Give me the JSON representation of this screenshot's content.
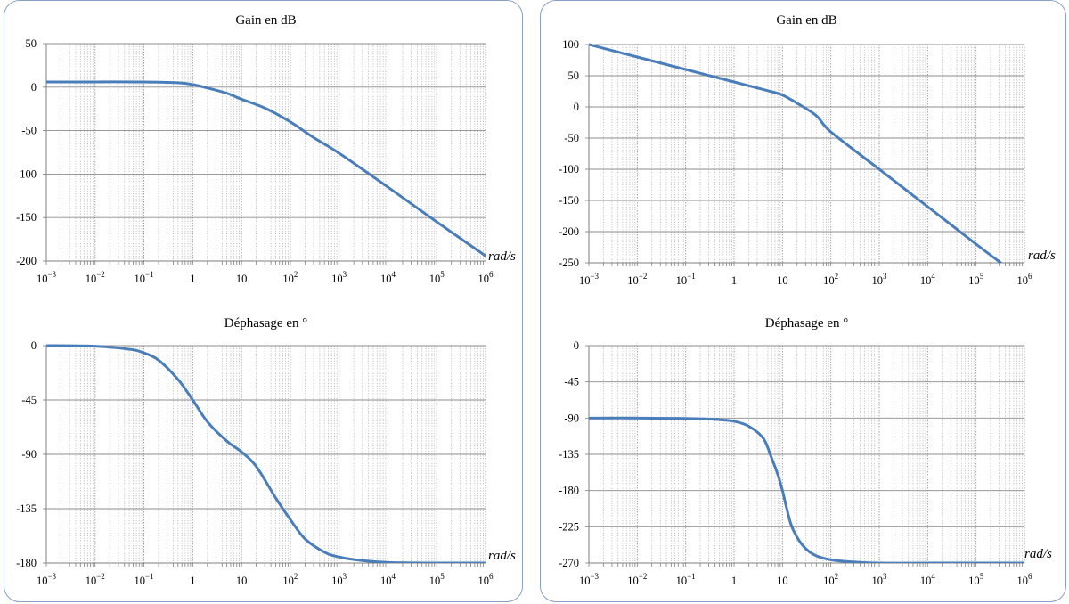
{
  "chart_data": [
    {
      "type": "line",
      "title": "Gain en dB",
      "xscale": "log",
      "xunit": "rad/s",
      "xlim": [
        0.001,
        1000000
      ],
      "ylim": [
        -200,
        50
      ],
      "yticks": [
        50,
        0,
        -50,
        -100,
        -150,
        -200
      ],
      "xtick_labels": [
        "10−3",
        "10−2",
        "10−1",
        "1",
        "10",
        "102",
        "103",
        "104",
        "105",
        "106"
      ],
      "grid": true,
      "series": [
        {
          "x": [
            0.001,
            0.01,
            0.1,
            0.5,
            1,
            2,
            5,
            10,
            30,
            100,
            300,
            1000,
            10000,
            100000,
            1000000
          ],
          "y": [
            6,
            6,
            6,
            5,
            3,
            -1,
            -7,
            -14,
            -24,
            -40,
            -58,
            -76,
            -115,
            -155,
            -194
          ]
        }
      ],
      "color": "#4a7ebb"
    },
    {
      "type": "line",
      "title": "Gain en dB",
      "xscale": "log",
      "xunit": "rad/s",
      "xlim": [
        0.001,
        1000000
      ],
      "ylim": [
        -250,
        100
      ],
      "yticks": [
        100,
        50,
        0,
        -50,
        -100,
        -150,
        -200,
        -250
      ],
      "xtick_labels": [
        "10−3",
        "10−2",
        "10−1",
        "1",
        "10",
        "102",
        "103",
        "104",
        "105",
        "106"
      ],
      "grid": true,
      "series": [
        {
          "x": [
            0.001,
            0.01,
            0.1,
            1,
            5,
            10,
            20,
            50,
            100,
            1000,
            10000,
            100000,
            350000
          ],
          "y": [
            100,
            80,
            60,
            40,
            26,
            19,
            6,
            -14,
            -40,
            -100,
            -160,
            -220,
            -252
          ]
        }
      ],
      "color": "#4a7ebb"
    },
    {
      "type": "line",
      "title": "Déphasage en °",
      "xscale": "log",
      "xunit": "rad/s",
      "xlim": [
        0.001,
        1000000
      ],
      "ylim": [
        -180,
        0
      ],
      "yticks": [
        0,
        -45,
        -90,
        -135,
        -180
      ],
      "xtick_labels": [
        "10−3",
        "10−2",
        "10−1",
        "1",
        "10",
        "102",
        "103",
        "104",
        "105",
        "106"
      ],
      "grid": true,
      "series": [
        {
          "x": [
            0.001,
            0.01,
            0.05,
            0.1,
            0.2,
            0.5,
            1,
            2,
            5,
            10,
            20,
            50,
            100,
            200,
            500,
            1000,
            3000,
            10000,
            100000,
            1000000
          ],
          "y": [
            0,
            -0.5,
            -3,
            -6,
            -12,
            -28,
            -45,
            -63,
            -79,
            -88,
            -100,
            -126,
            -144,
            -160,
            -171,
            -175,
            -178,
            -179.5,
            -180,
            -180
          ]
        }
      ],
      "color": "#4a7ebb"
    },
    {
      "type": "line",
      "title": "Déphasage en °",
      "xscale": "log",
      "xunit": "rad/s",
      "xlim": [
        0.001,
        1000000
      ],
      "ylim": [
        -270,
        0
      ],
      "yticks": [
        0,
        -45,
        -90,
        -135,
        -180,
        -225,
        -270
      ],
      "xtick_labels": [
        "10−3",
        "10−2",
        "10−1",
        "1",
        "10",
        "102",
        "103",
        "104",
        "105",
        "106"
      ],
      "grid": true,
      "series": [
        {
          "x": [
            0.001,
            0.01,
            0.1,
            0.5,
            1,
            2,
            4,
            6,
            8,
            10,
            12,
            15,
            20,
            30,
            50,
            100,
            200,
            1000,
            10000,
            100000,
            1000000
          ],
          "y": [
            -90,
            -90,
            -90.5,
            -92,
            -94,
            -100,
            -115,
            -140,
            -160,
            -180,
            -200,
            -222,
            -238,
            -252,
            -261,
            -266,
            -268,
            -270,
            -270,
            -270,
            -270
          ]
        }
      ],
      "color": "#4a7ebb"
    }
  ]
}
